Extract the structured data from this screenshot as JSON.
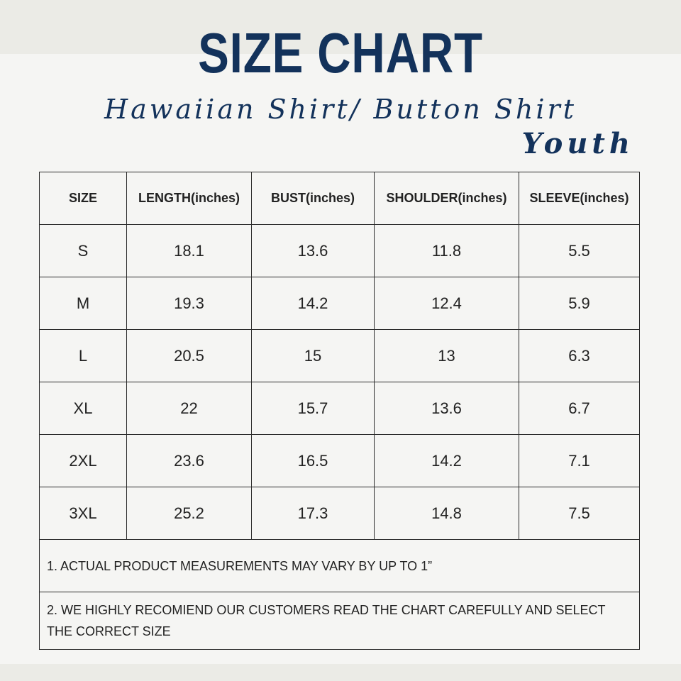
{
  "title": "SIZE CHART",
  "subtitle": "Hawaiian Shirt/ Button Shirt",
  "tag": "Youth",
  "table": {
    "headers": [
      "SIZE",
      "LENGTH(inches)",
      "BUST(inches)",
      "SHOULDER(inches)",
      "SLEEVE(inches)"
    ],
    "rows": [
      [
        "S",
        "18.1",
        "13.6",
        "11.8",
        "5.5"
      ],
      [
        "M",
        "19.3",
        "14.2",
        "12.4",
        "5.9"
      ],
      [
        "L",
        "20.5",
        "15",
        "13",
        "6.3"
      ],
      [
        "XL",
        "22",
        "15.7",
        "13.6",
        "6.7"
      ],
      [
        "2XL",
        "23.6",
        "16.5",
        "14.2",
        "7.1"
      ],
      [
        "3XL",
        "25.2",
        "17.3",
        "14.8",
        "7.5"
      ]
    ]
  },
  "notes": [
    "1. ACTUAL PRODUCT MEASUREMENTS MAY VARY BY UP TO 1”",
    "2. WE HIGHLY RECOMIEND OUR CUSTOMERS READ THE CHART CAREFULLY AND SELECT THE CORRECT SIZE"
  ],
  "colors": {
    "title": "#13325b",
    "background": "#f5f5f3",
    "border": "#2b2b2b"
  }
}
